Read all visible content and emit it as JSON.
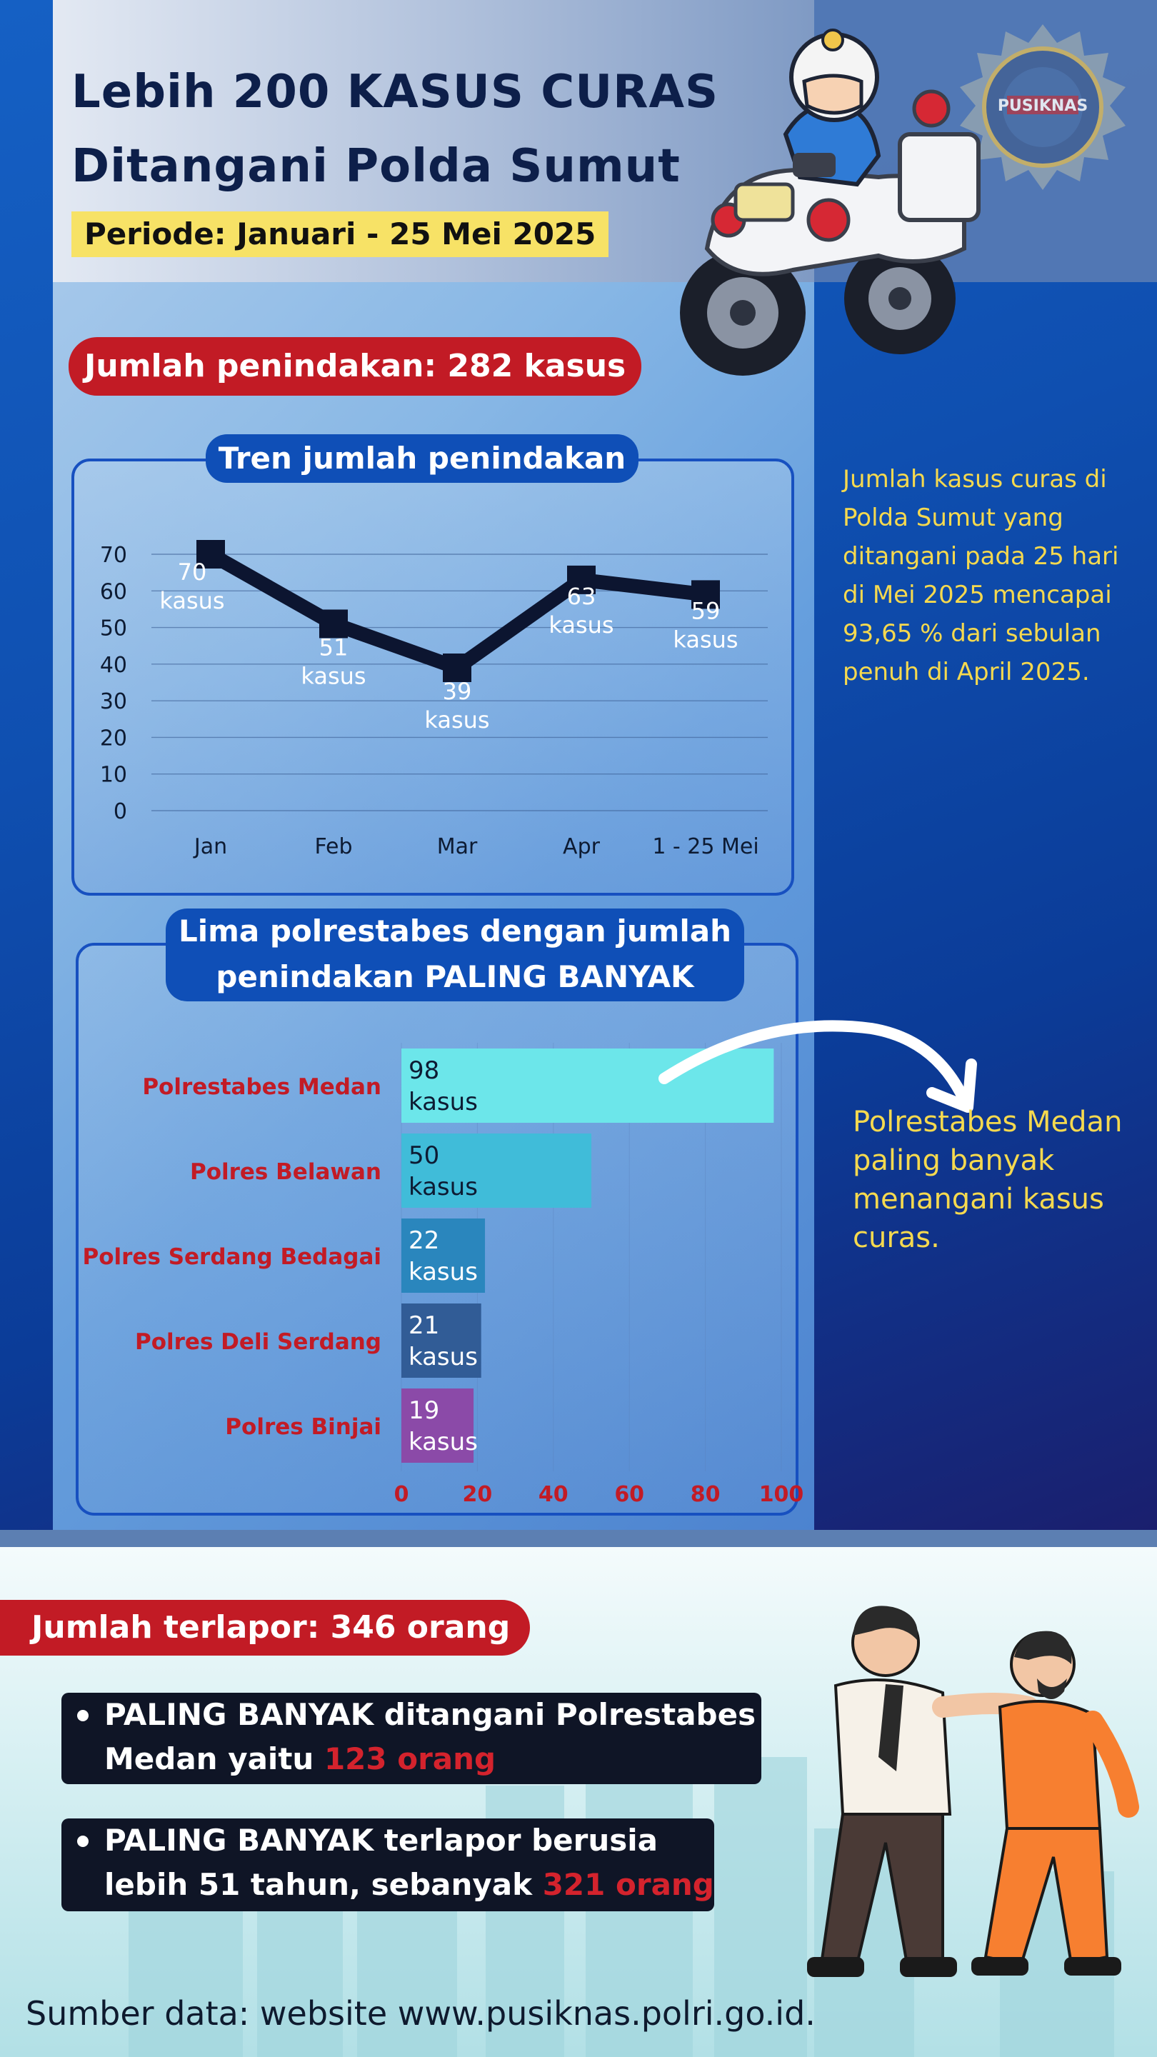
{
  "header": {
    "title_line1": "Lebih 200 KASUS CURAS",
    "title_line2": "Ditangani Polda Sumut",
    "periode": "Periode: Januari - 25 Mei 2025",
    "logo_text": "PUSIKNAS"
  },
  "penindakan_label": "Jumlah penindakan: 282 kasus",
  "trend_note": "Jumlah kasus curas di Polda Sumut yang ditangani pada 25 hari di Mei 2025 mencapai 93,65 % dari sebulan penuh di April 2025.",
  "bar_note": "Polrestabes Medan paling banyak menangani kasus curas.",
  "terlapor_label": "Jumlah terlapor: 346 orang",
  "bullets": [
    {
      "line1": "PALING BANYAK ditangani Polrestabes",
      "line2_pre": "Medan yaitu ",
      "line2_red": "123 orang"
    },
    {
      "line1": "PALING BANYAK terlapor berusia",
      "line2_pre": "lebih 51 tahun, sebanyak ",
      "line2_red": "321 orang"
    }
  ],
  "source": "Sumber data: website www.pusiknas.polri.go.id.",
  "colors": {
    "accent_red": "#c21b25",
    "note_yellow": "#f5d94f",
    "title_navy": "#0d1f4a"
  },
  "icons": [
    "police-motorcycle-illustration",
    "pusiknas-logo",
    "arrest-illustration",
    "arrow-icon"
  ],
  "chart_data": [
    {
      "type": "line",
      "title": "Tren jumlah penindakan",
      "categories": [
        "Jan",
        "Feb",
        "Mar",
        "Apr",
        "1 - 25 Mei"
      ],
      "values": [
        70,
        51,
        39,
        63,
        59
      ],
      "data_labels": [
        "70 kasus",
        "51 kasus",
        "39 kasus",
        "63 kasus",
        "59 kasus"
      ],
      "data_label_unit": "kasus",
      "ylim": [
        0,
        70
      ],
      "yticks": [
        0,
        10,
        20,
        30,
        40,
        50,
        60,
        70
      ],
      "grid": true
    },
    {
      "type": "bar",
      "orientation": "horizontal",
      "title": "Lima polrestabes dengan jumlah penindakan PALING BANYAK",
      "categories": [
        "Polrestabes Medan",
        "Polres Belawan",
        "Polres Serdang Bedagai",
        "Polres Deli Serdang",
        "Polres Binjai"
      ],
      "values": [
        98,
        50,
        22,
        21,
        19
      ],
      "data_label_unit": "kasus",
      "colors": [
        "#6ce6ea",
        "#40bcd9",
        "#2a86bd",
        "#315c96",
        "#8b4aa8"
      ],
      "xlim": [
        0,
        100
      ],
      "xticks": [
        0,
        20,
        40,
        60,
        80,
        100
      ]
    }
  ]
}
